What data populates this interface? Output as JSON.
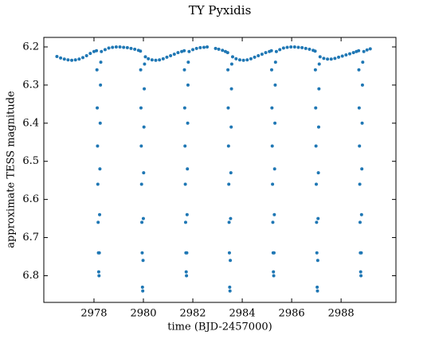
{
  "chart_data": {
    "type": "scatter",
    "title": "TY Pyxidis",
    "x_label": "time (BJD-2457000)",
    "y_label": "approximate TESS magnitude",
    "color": "#1f77b4",
    "y_inverted": true,
    "xlim": [
      2975.97,
      2990.22
    ],
    "ylim": [
      6.175,
      6.87
    ],
    "xticks": [
      2978,
      2980,
      2982,
      2984,
      2986,
      2988
    ],
    "yticks": [
      6.2,
      6.3,
      6.4,
      6.5,
      6.6,
      6.7,
      6.8
    ],
    "x": [
      2976.5,
      2976.65,
      2976.8,
      2976.95,
      2977.1,
      2977.25,
      2977.4,
      2977.55,
      2977.7,
      2977.85,
      2978.0,
      2978.1,
      2978.12,
      2978.132,
      2978.144,
      2978.156,
      2978.168,
      2978.18,
      2978.192,
      2978.204,
      2978.216,
      2978.228,
      2978.24,
      2978.252,
      2978.264,
      2978.276,
      2978.3,
      2978.45,
      2978.6,
      2978.75,
      2978.9,
      2979.05,
      2979.2,
      2979.35,
      2979.5,
      2979.65,
      2979.8,
      2979.88,
      2979.89,
      2979.902,
      2979.914,
      2979.926,
      2979.938,
      2979.95,
      2979.962,
      2979.974,
      2979.986,
      2979.998,
      2980.01,
      2980.022,
      2980.034,
      2980.046,
      2980.08,
      2980.2,
      2980.35,
      2980.5,
      2980.65,
      2980.8,
      2980.95,
      2981.1,
      2981.25,
      2981.4,
      2981.55,
      2981.65,
      2981.66,
      2981.672,
      2981.684,
      2981.696,
      2981.708,
      2981.72,
      2981.732,
      2981.744,
      2981.756,
      2981.768,
      2981.78,
      2981.792,
      2981.804,
      2981.816,
      2981.85,
      2982.0,
      2982.15,
      2982.3,
      2982.45,
      2982.58,
      2982.92,
      2983.05,
      2983.2,
      2983.32,
      2983.41,
      2983.42,
      2983.432,
      2983.444,
      2983.456,
      2983.468,
      2983.48,
      2983.492,
      2983.504,
      2983.516,
      2983.528,
      2983.54,
      2983.552,
      2983.564,
      2983.576,
      2983.61,
      2983.75,
      2983.9,
      2984.05,
      2984.2,
      2984.35,
      2984.5,
      2984.65,
      2984.8,
      2984.95,
      2985.1,
      2985.18,
      2985.19,
      2985.202,
      2985.214,
      2985.226,
      2985.238,
      2985.25,
      2985.262,
      2985.274,
      2985.286,
      2985.298,
      2985.31,
      2985.322,
      2985.334,
      2985.346,
      2985.38,
      2985.52,
      2985.67,
      2985.82,
      2985.97,
      2986.12,
      2986.27,
      2986.42,
      2986.57,
      2986.72,
      2986.87,
      2986.95,
      2986.96,
      2986.972,
      2986.984,
      2986.996,
      2987.008,
      2987.02,
      2987.032,
      2987.044,
      2987.056,
      2987.068,
      2987.08,
      2987.092,
      2987.104,
      2987.116,
      2987.15,
      2987.3,
      2987.45,
      2987.6,
      2987.75,
      2987.9,
      2988.05,
      2988.2,
      2988.35,
      2988.5,
      2988.62,
      2988.71,
      2988.72,
      2988.732,
      2988.744,
      2988.756,
      2988.768,
      2988.78,
      2988.792,
      2988.804,
      2988.816,
      2988.828,
      2988.84,
      2988.852,
      2988.864,
      2988.876,
      2988.92,
      2989.05,
      2989.18
    ],
    "values": [
      6.225,
      6.229,
      6.232,
      6.234,
      6.235,
      6.234,
      6.232,
      6.228,
      6.223,
      6.217,
      6.212,
      6.21,
      6.26,
      6.36,
      6.46,
      6.56,
      6.66,
      6.74,
      6.79,
      6.8,
      6.74,
      6.64,
      6.52,
      6.4,
      6.3,
      6.24,
      6.212,
      6.207,
      6.203,
      6.201,
      6.2,
      6.2,
      6.201,
      6.202,
      6.204,
      6.206,
      6.209,
      6.211,
      6.26,
      6.36,
      6.46,
      6.56,
      6.66,
      6.74,
      6.83,
      6.84,
      6.76,
      6.65,
      6.53,
      6.41,
      6.31,
      6.245,
      6.226,
      6.231,
      6.234,
      6.235,
      6.234,
      6.231,
      6.227,
      6.223,
      6.219,
      6.215,
      6.212,
      6.21,
      6.26,
      6.36,
      6.46,
      6.56,
      6.66,
      6.74,
      6.79,
      6.8,
      6.74,
      6.64,
      6.52,
      6.4,
      6.3,
      6.24,
      6.212,
      6.207,
      6.204,
      6.202,
      6.201,
      6.2,
      6.204,
      6.206,
      6.209,
      6.212,
      6.215,
      6.26,
      6.36,
      6.46,
      6.56,
      6.66,
      6.74,
      6.83,
      6.84,
      6.76,
      6.65,
      6.53,
      6.41,
      6.31,
      6.245,
      6.226,
      6.231,
      6.234,
      6.235,
      6.234,
      6.231,
      6.227,
      6.223,
      6.219,
      6.215,
      6.212,
      6.21,
      6.26,
      6.36,
      6.46,
      6.56,
      6.66,
      6.74,
      6.79,
      6.8,
      6.74,
      6.64,
      6.52,
      6.4,
      6.3,
      6.24,
      6.212,
      6.207,
      6.203,
      6.201,
      6.2,
      6.2,
      6.201,
      6.202,
      6.204,
      6.206,
      6.209,
      6.211,
      6.26,
      6.36,
      6.46,
      6.56,
      6.66,
      6.74,
      6.83,
      6.84,
      6.76,
      6.65,
      6.53,
      6.41,
      6.31,
      6.245,
      6.226,
      6.23,
      6.232,
      6.232,
      6.23,
      6.227,
      6.224,
      6.221,
      6.218,
      6.215,
      6.212,
      6.21,
      6.26,
      6.36,
      6.46,
      6.56,
      6.66,
      6.74,
      6.79,
      6.8,
      6.74,
      6.64,
      6.52,
      6.4,
      6.3,
      6.24,
      6.212,
      6.208,
      6.205
    ]
  }
}
